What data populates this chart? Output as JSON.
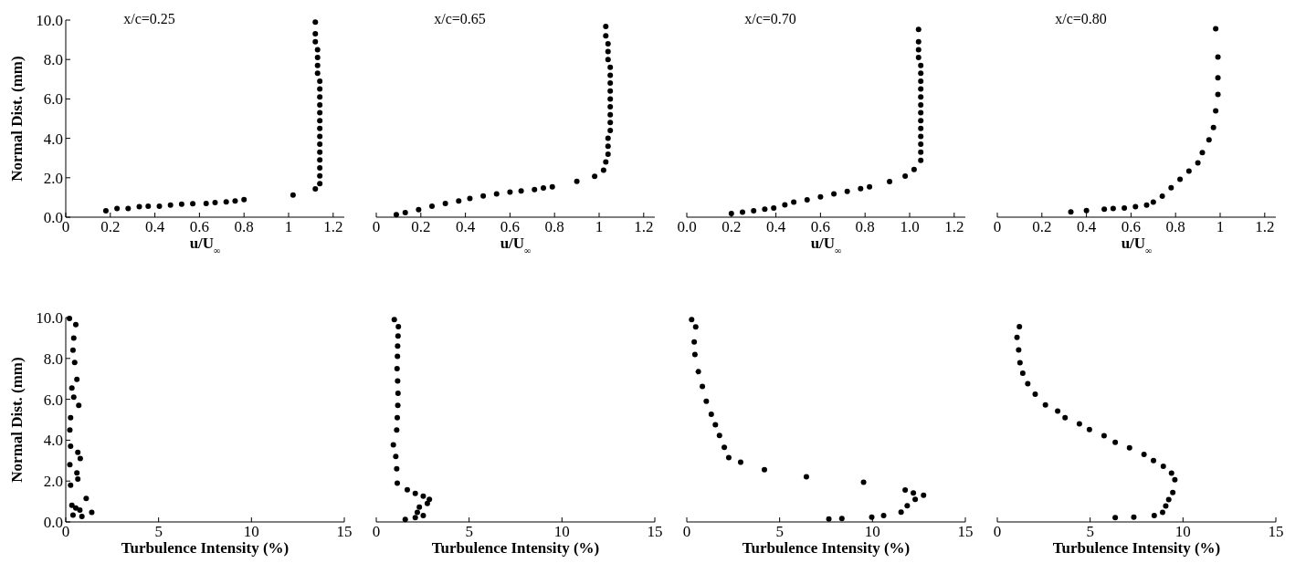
{
  "chart_data": [
    {
      "type": "scatter",
      "title": "x/c=0.25",
      "xlabel": "u/U$_{∞}$",
      "ylabel": "Normal Dist. (mm)",
      "marker": "circle",
      "x": [
        0.18,
        0.23,
        0.28,
        0.33,
        0.37,
        0.42,
        0.47,
        0.52,
        0.57,
        0.63,
        0.67,
        0.72,
        0.76,
        0.8,
        1.02,
        1.12,
        1.14,
        1.14,
        1.14,
        1.14,
        1.14,
        1.14,
        1.14,
        1.14,
        1.14,
        1.14,
        1.14,
        1.14,
        1.14,
        1.14,
        1.13,
        1.13,
        1.13,
        1.13,
        1.12,
        1.12,
        1.12
      ],
      "series": [
        {
          "color": "#000000",
          "values": [
            0.32,
            0.44,
            0.44,
            0.53,
            0.55,
            0.55,
            0.61,
            0.66,
            0.68,
            0.7,
            0.74,
            0.78,
            0.82,
            0.89,
            1.12,
            1.44,
            1.7,
            2.1,
            2.5,
            2.9,
            3.3,
            3.7,
            4.1,
            4.5,
            4.9,
            5.3,
            5.7,
            6.1,
            6.5,
            6.9,
            7.3,
            7.7,
            8.1,
            8.5,
            8.9,
            9.3,
            9.9
          ]
        }
      ],
      "xlim": [
        0,
        1.25
      ],
      "ylim": [
        0,
        10
      ],
      "xticks": [
        {
          "value": 0,
          "label": "0"
        },
        {
          "value": 0.2,
          "label": "0.2"
        },
        {
          "value": 0.4,
          "label": "0.4"
        },
        {
          "value": 0.6,
          "label": "0.6"
        },
        {
          "value": 0.8,
          "label": "0.8"
        },
        {
          "value": 1,
          "label": "1"
        },
        {
          "value": 1.2,
          "label": "1.2"
        }
      ],
      "yticks": [
        {
          "value": 0,
          "label": "0.0"
        },
        {
          "value": 2,
          "label": "2.0"
        },
        {
          "value": 4,
          "label": "4.0"
        },
        {
          "value": 6,
          "label": "6.0"
        },
        {
          "value": 8,
          "label": "8.0"
        },
        {
          "value": 10,
          "label": "10.0"
        }
      ]
    },
    {
      "type": "scatter",
      "title": "x/c=0.65",
      "xlabel": "u/U$_{∞}$",
      "marker": "circle",
      "tick_labels": "x",
      "x": [
        0.09,
        0.13,
        0.19,
        0.25,
        0.31,
        0.37,
        0.42,
        0.48,
        0.54,
        0.6,
        0.65,
        0.71,
        0.75,
        0.79,
        0.9,
        0.98,
        1.02,
        1.03,
        1.04,
        1.04,
        1.04,
        1.05,
        1.05,
        1.05,
        1.05,
        1.05,
        1.05,
        1.05,
        1.05,
        1.05,
        1.04,
        1.04,
        1.04,
        1.03,
        1.03
      ],
      "series": [
        {
          "color": "#000000",
          "values": [
            0.13,
            0.23,
            0.38,
            0.55,
            0.7,
            0.82,
            0.95,
            1.08,
            1.18,
            1.27,
            1.33,
            1.4,
            1.48,
            1.54,
            1.82,
            2.07,
            2.39,
            2.8,
            3.2,
            3.6,
            4.0,
            4.4,
            4.8,
            5.2,
            5.6,
            6.0,
            6.4,
            6.8,
            7.2,
            7.6,
            8.0,
            8.4,
            8.8,
            9.2,
            9.68
          ]
        }
      ],
      "xlim": [
        0,
        1.25
      ],
      "ylim": [
        0,
        10
      ],
      "xticks": [
        {
          "value": 0,
          "label": "0"
        },
        {
          "value": 0.2,
          "label": "0.2"
        },
        {
          "value": 0.4,
          "label": "0.4"
        },
        {
          "value": 0.6,
          "label": "0.6"
        },
        {
          "value": 0.8,
          "label": "0.8"
        },
        {
          "value": 1,
          "label": "1"
        },
        {
          "value": 1.2,
          "label": "1.2"
        }
      ]
    },
    {
      "type": "scatter",
      "title": "x/c=0.70",
      "xlabel": "u/U$_{∞}$",
      "marker": "circle",
      "tick_labels": "x",
      "x": [
        0.2,
        0.25,
        0.3,
        0.35,
        0.39,
        0.44,
        0.48,
        0.54,
        0.6,
        0.66,
        0.72,
        0.78,
        0.82,
        0.91,
        0.98,
        1.02,
        1.05,
        1.05,
        1.05,
        1.05,
        1.05,
        1.05,
        1.05,
        1.05,
        1.05,
        1.05,
        1.05,
        1.05,
        1.05,
        1.04,
        1.04,
        1.04,
        1.04
      ],
      "series": [
        {
          "color": "#000000",
          "values": [
            0.19,
            0.25,
            0.32,
            0.4,
            0.46,
            0.63,
            0.76,
            0.88,
            1.03,
            1.18,
            1.31,
            1.45,
            1.54,
            1.81,
            2.08,
            2.42,
            2.88,
            3.3,
            3.7,
            4.1,
            4.5,
            4.9,
            5.3,
            5.7,
            6.1,
            6.5,
            6.9,
            7.3,
            7.7,
            8.1,
            8.5,
            8.9,
            9.52
          ]
        }
      ],
      "xlim": [
        0,
        1.25
      ],
      "ylim": [
        0,
        10
      ],
      "xticks": [
        {
          "value": 0,
          "label": "0.0"
        },
        {
          "value": 0.2,
          "label": "0.2"
        },
        {
          "value": 0.4,
          "label": "0.4"
        },
        {
          "value": 0.6,
          "label": "0.6"
        },
        {
          "value": 0.8,
          "label": "0.8"
        },
        {
          "value": 1,
          "label": "1.0"
        },
        {
          "value": 1.2,
          "label": "1.2"
        }
      ]
    },
    {
      "type": "scatter",
      "title": "x/c=0.80",
      "xlabel": "u/U$_{∞}$",
      "marker": "circle",
      "tick_labels": "x",
      "x": [
        0.33,
        0.4,
        0.48,
        0.52,
        0.57,
        0.62,
        0.67,
        0.7,
        0.74,
        0.78,
        0.82,
        0.86,
        0.9,
        0.92,
        0.95,
        0.97,
        0.98,
        0.99,
        0.99,
        0.99,
        0.98
      ],
      "series": [
        {
          "color": "#000000",
          "values": [
            0.27,
            0.34,
            0.4,
            0.44,
            0.46,
            0.53,
            0.61,
            0.76,
            1.07,
            1.49,
            1.92,
            2.34,
            2.76,
            3.28,
            3.92,
            4.55,
            5.39,
            6.23,
            7.07,
            8.13,
            9.56
          ]
        }
      ],
      "xlim": [
        0,
        1.25
      ],
      "ylim": [
        0,
        10
      ],
      "xticks": [
        {
          "value": 0,
          "label": "0"
        },
        {
          "value": 0.2,
          "label": "0.2"
        },
        {
          "value": 0.4,
          "label": "0.4"
        },
        {
          "value": 0.6,
          "label": "0.6"
        },
        {
          "value": 0.8,
          "label": "0.8"
        },
        {
          "value": 1,
          "label": "1"
        },
        {
          "value": 1.2,
          "label": "1.2"
        }
      ]
    },
    {
      "type": "scatter",
      "xlabel": "Turbulence Intensity (%)",
      "ylabel": "Normal Dist. (mm)",
      "marker": "circle",
      "x": [
        0.2,
        0.54,
        0.43,
        0.39,
        0.48,
        0.6,
        0.33,
        0.43,
        0.7,
        0.26,
        0.22,
        0.26,
        0.65,
        0.78,
        0.22,
        0.6,
        0.65,
        0.26,
        1.1,
        0.33,
        0.54,
        0.76,
        1.4,
        0.39,
        0.87
      ],
      "series": [
        {
          "color": "#000000",
          "values": [
            9.96,
            9.65,
            9.0,
            8.4,
            7.8,
            6.97,
            6.55,
            6.1,
            5.7,
            5.1,
            4.5,
            3.7,
            3.4,
            3.1,
            2.8,
            2.4,
            2.1,
            1.8,
            1.15,
            0.82,
            0.68,
            0.58,
            0.47,
            0.33,
            0.27
          ]
        }
      ],
      "xlim": [
        0,
        15
      ],
      "ylim": [
        0,
        10
      ],
      "xticks": [
        0,
        5,
        10,
        15
      ],
      "yticks": [
        {
          "value": 0,
          "label": "0.0"
        },
        {
          "value": 2,
          "label": "2.0"
        },
        {
          "value": 4,
          "label": "4.0"
        },
        {
          "value": 6,
          "label": "6.0"
        },
        {
          "value": 8,
          "label": "8.0"
        },
        {
          "value": 10,
          "label": "10.0"
        }
      ]
    },
    {
      "type": "scatter",
      "xlabel": "Turbulence Intensity (%)",
      "marker": "circle",
      "tick_labels": "x",
      "x": [
        0.97,
        1.19,
        1.17,
        1.15,
        1.14,
        1.12,
        1.15,
        1.17,
        1.16,
        1.13,
        1.1,
        0.92,
        1.05,
        1.1,
        1.13,
        1.67,
        2.1,
        2.53,
        2.86,
        2.75,
        2.32,
        2.21,
        2.53,
        2.1,
        1.56
      ],
      "series": [
        {
          "color": "#000000",
          "values": [
            9.9,
            9.55,
            9.1,
            8.6,
            8.1,
            7.5,
            6.9,
            6.3,
            5.7,
            5.1,
            4.5,
            3.77,
            3.2,
            2.6,
            1.9,
            1.57,
            1.4,
            1.26,
            1.1,
            0.9,
            0.72,
            0.47,
            0.31,
            0.21,
            0.12
          ]
        }
      ],
      "xlim": [
        0,
        15
      ],
      "ylim": [
        0,
        10
      ],
      "xticks": [
        0,
        5,
        10,
        15
      ]
    },
    {
      "type": "scatter",
      "xlabel": "Turbulence Intensity (%)",
      "marker": "circle",
      "tick_labels": "x",
      "x": [
        0.26,
        0.48,
        0.4,
        0.44,
        0.62,
        0.84,
        1.05,
        1.32,
        1.54,
        1.76,
        2.02,
        2.26,
        2.9,
        4.18,
        6.44,
        9.52,
        11.76,
        12.2,
        12.75,
        12.3,
        11.87,
        11.54,
        10.6,
        9.96,
        8.35,
        7.65
      ],
      "series": [
        {
          "color": "#000000",
          "values": [
            9.9,
            9.54,
            8.81,
            8.19,
            7.35,
            6.63,
            5.9,
            5.27,
            4.75,
            4.23,
            3.65,
            3.15,
            2.92,
            2.56,
            2.21,
            1.94,
            1.56,
            1.42,
            1.31,
            1.1,
            0.79,
            0.48,
            0.31,
            0.23,
            0.17,
            0.15
          ]
        }
      ],
      "xlim": [
        0,
        15
      ],
      "ylim": [
        0,
        10
      ],
      "xticks": [
        0,
        5,
        10,
        15
      ]
    },
    {
      "type": "scatter",
      "xlabel": "Turbulence Intensity (%)",
      "marker": "circle",
      "tick_labels": "x",
      "x": [
        1.19,
        1.06,
        1.15,
        1.22,
        1.37,
        1.64,
        2.04,
        2.59,
        3.25,
        3.65,
        4.42,
        4.96,
        5.75,
        6.35,
        7.12,
        7.9,
        8.41,
        8.94,
        9.38,
        9.56,
        9.45,
        9.23,
        9.07,
        8.9,
        8.45,
        7.35,
        6.35
      ],
      "series": [
        {
          "color": "#000000",
          "values": [
            9.55,
            9.03,
            8.41,
            7.79,
            7.28,
            6.76,
            6.25,
            5.73,
            5.42,
            5.1,
            4.8,
            4.52,
            4.22,
            3.9,
            3.63,
            3.3,
            3.0,
            2.72,
            2.39,
            2.06,
            1.44,
            1.09,
            0.78,
            0.47,
            0.31,
            0.23,
            0.21
          ]
        }
      ],
      "xlim": [
        0,
        15
      ],
      "ylim": [
        0,
        10
      ],
      "xticks": [
        0,
        5,
        10,
        15
      ]
    }
  ]
}
